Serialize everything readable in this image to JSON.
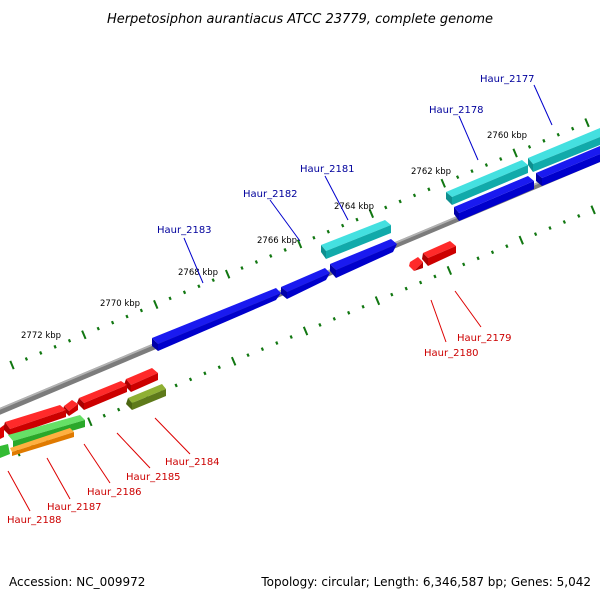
{
  "title": "Herpetosiphon aurantiacus ATCC 23779, complete genome",
  "footer": {
    "accession": "Accession: NC_009972",
    "summary": "Topology: circular; Length: 6,346,587 bp; Genes: 5,042"
  },
  "kbp_labels": [
    "2760 kbp",
    "2762 kbp",
    "2764 kbp",
    "2766 kbp",
    "2768 kbp",
    "2770 kbp",
    "2772 kbp"
  ],
  "colors": {
    "forward_label": "#00009c",
    "reverse_label": "#cc0000",
    "blue_feature": "#0a10e0",
    "cyan_feature": "#22cccc",
    "red_feature": "#ee1111",
    "green_feature": "#44c844",
    "orange_feature": "#ff9911",
    "olive_feature": "#6f8f22",
    "backbone": "#808080",
    "ticks": "#117711"
  },
  "forward_genes": [
    "Haur_2177",
    "Haur_2178",
    "Haur_2181",
    "Haur_2182",
    "Haur_2183"
  ],
  "reverse_genes": [
    "Haur_2179",
    "Haur_2180",
    "Haur_2184",
    "Haur_2185",
    "Haur_2186",
    "Haur_2187",
    "Haur_2188"
  ]
}
